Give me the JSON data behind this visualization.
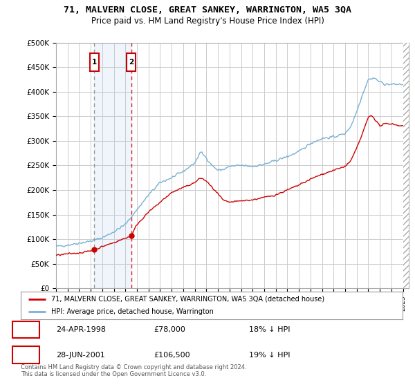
{
  "title": "71, MALVERN CLOSE, GREAT SANKEY, WARRINGTON, WA5 3QA",
  "subtitle": "Price paid vs. HM Land Registry's House Price Index (HPI)",
  "ylabel_ticks": [
    "£0",
    "£50K",
    "£100K",
    "£150K",
    "£200K",
    "£250K",
    "£300K",
    "£350K",
    "£400K",
    "£450K",
    "£500K"
  ],
  "ytick_values": [
    0,
    50000,
    100000,
    150000,
    200000,
    250000,
    300000,
    350000,
    400000,
    450000,
    500000
  ],
  "ylim": [
    0,
    500000
  ],
  "purchase1": {
    "date": "24-APR-1998",
    "price": 78000,
    "hpi_diff": "18% ↓ HPI",
    "year": 1998.31
  },
  "purchase2": {
    "date": "28-JUN-2001",
    "price": 106500,
    "hpi_diff": "19% ↓ HPI",
    "year": 2001.49
  },
  "legend_line1": "71, MALVERN CLOSE, GREAT SANKEY, WARRINGTON, WA5 3QA (detached house)",
  "legend_line2": "HPI: Average price, detached house, Warrington",
  "footer": "Contains HM Land Registry data © Crown copyright and database right 2024.\nThis data is licensed under the Open Government Licence v3.0.",
  "table_row1": [
    "1",
    "24-APR-1998",
    "£78,000",
    "18% ↓ HPI"
  ],
  "table_row2": [
    "2",
    "28-JUN-2001",
    "£106,500",
    "19% ↓ HPI"
  ],
  "line_color_red": "#cc0000",
  "line_color_blue": "#7ab0d4",
  "vline1_color": "#aaaaaa",
  "vline2_color": "#dd2222",
  "shade_color": "#ddeeff",
  "background_color": "#ffffff",
  "grid_color": "#cccccc",
  "box_color": "#cc0000",
  "hpi_keypoints": [
    [
      1995.0,
      85000
    ],
    [
      1996.0,
      88000
    ],
    [
      1997.0,
      92000
    ],
    [
      1998.0,
      96000
    ],
    [
      1999.0,
      103000
    ],
    [
      2000.0,
      115000
    ],
    [
      2001.0,
      130000
    ],
    [
      2002.0,
      160000
    ],
    [
      2003.0,
      190000
    ],
    [
      2004.0,
      215000
    ],
    [
      2005.0,
      225000
    ],
    [
      2006.0,
      238000
    ],
    [
      2007.0,
      255000
    ],
    [
      2007.5,
      278000
    ],
    [
      2008.0,
      265000
    ],
    [
      2008.5,
      250000
    ],
    [
      2009.0,
      240000
    ],
    [
      2009.5,
      242000
    ],
    [
      2010.0,
      248000
    ],
    [
      2011.0,
      250000
    ],
    [
      2012.0,
      248000
    ],
    [
      2013.0,
      252000
    ],
    [
      2014.0,
      260000
    ],
    [
      2015.0,
      268000
    ],
    [
      2016.0,
      278000
    ],
    [
      2017.0,
      295000
    ],
    [
      2018.0,
      305000
    ],
    [
      2019.0,
      308000
    ],
    [
      2020.0,
      315000
    ],
    [
      2020.5,
      330000
    ],
    [
      2021.0,
      360000
    ],
    [
      2021.5,
      395000
    ],
    [
      2022.0,
      425000
    ],
    [
      2022.5,
      428000
    ],
    [
      2023.0,
      420000
    ],
    [
      2023.5,
      415000
    ],
    [
      2024.0,
      415000
    ],
    [
      2024.5,
      415000
    ],
    [
      2025.0,
      415000
    ]
  ],
  "red_keypoints": [
    [
      1995.0,
      67000
    ],
    [
      1996.0,
      70000
    ],
    [
      1997.0,
      72000
    ],
    [
      1997.5,
      74000
    ],
    [
      1998.31,
      78000
    ],
    [
      1999.0,
      85000
    ],
    [
      2000.0,
      93000
    ],
    [
      2001.49,
      106500
    ],
    [
      2002.0,
      130000
    ],
    [
      2003.0,
      155000
    ],
    [
      2004.0,
      175000
    ],
    [
      2005.0,
      195000
    ],
    [
      2006.0,
      205000
    ],
    [
      2007.0,
      215000
    ],
    [
      2007.5,
      225000
    ],
    [
      2008.0,
      218000
    ],
    [
      2008.5,
      205000
    ],
    [
      2009.0,
      192000
    ],
    [
      2009.5,
      178000
    ],
    [
      2010.0,
      175000
    ],
    [
      2011.0,
      178000
    ],
    [
      2012.0,
      180000
    ],
    [
      2013.0,
      185000
    ],
    [
      2014.0,
      190000
    ],
    [
      2015.0,
      200000
    ],
    [
      2016.0,
      210000
    ],
    [
      2017.0,
      222000
    ],
    [
      2018.0,
      232000
    ],
    [
      2019.0,
      240000
    ],
    [
      2020.0,
      248000
    ],
    [
      2020.5,
      260000
    ],
    [
      2021.0,
      285000
    ],
    [
      2021.5,
      315000
    ],
    [
      2022.0,
      348000
    ],
    [
      2022.3,
      352000
    ],
    [
      2022.7,
      340000
    ],
    [
      2023.0,
      330000
    ],
    [
      2023.5,
      335000
    ],
    [
      2024.0,
      335000
    ],
    [
      2024.5,
      332000
    ],
    [
      2025.0,
      330000
    ]
  ]
}
